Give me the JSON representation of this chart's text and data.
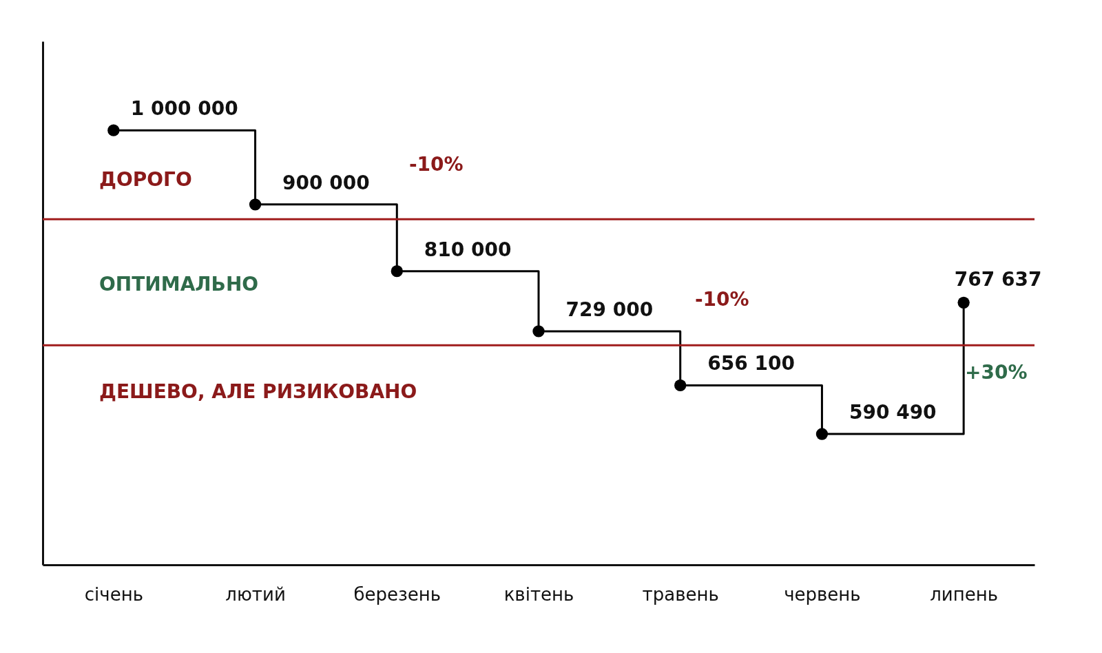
{
  "chart_data": {
    "type": "step",
    "categories": [
      "січень",
      "лютий",
      "березень",
      "квітень",
      "травень",
      "червень",
      "липень"
    ],
    "series": [
      {
        "color": "#000000",
        "values": [
          1000000,
          900000,
          810000,
          729000,
          656100,
          590490,
          767637
        ]
      }
    ],
    "ylim": [
      414000,
      1120000
    ],
    "tick_labels": "x",
    "data_labels": true,
    "marker": "circle",
    "line_style": "solid",
    "grid": false,
    "ref_lines": [
      {
        "axis": "y",
        "value": 880000,
        "color": "#a01c1c"
      },
      {
        "axis": "y",
        "value": 710000,
        "color": "#a01c1c"
      }
    ],
    "annotations": [
      "ДОРОГО",
      "ОПТИМАЛЬНО",
      "ДЕШЕВО, АЛЕ РИЗИКОВАНО",
      "-10%",
      "-10%",
      "+30%"
    ]
  }
}
